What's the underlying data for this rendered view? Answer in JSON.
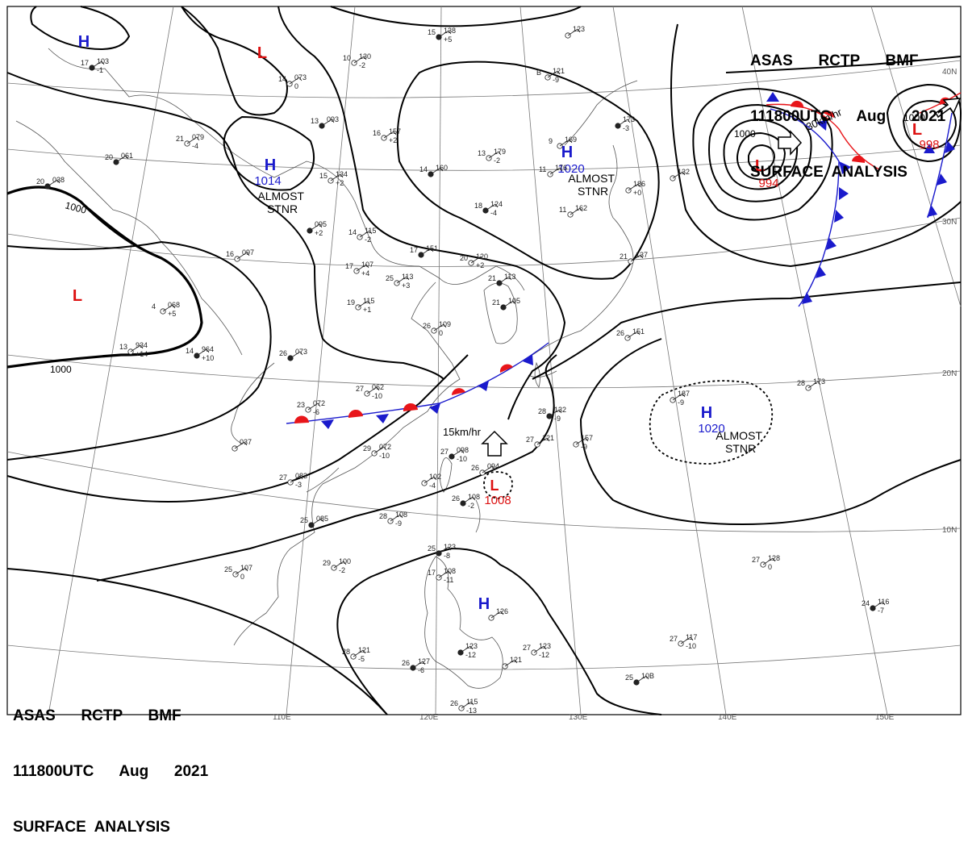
{
  "header_top": {
    "line1": "ASAS      RCTP      BMF",
    "line2": "111800UTC      Aug      2021",
    "line3": "SURFACE  ANALYSIS"
  },
  "header_bottom": {
    "line1": "ASAS      RCTP      BMF",
    "line2": "111800UTC      Aug      2021",
    "line3": "SURFACE  ANALYSIS"
  },
  "colors": {
    "high": "#1a1acc",
    "low": "#dd1111",
    "warm_front": "#e8161a",
    "cold_front": "#1a1acc",
    "isobar": "#000000",
    "coast": "#555555",
    "grid": "#666666"
  },
  "grid_labels": {
    "lon": [
      "110E",
      "120E",
      "130E",
      "140E",
      "150E"
    ],
    "lat": [
      "40N",
      "30N",
      "20N",
      "10N"
    ]
  },
  "centers": [
    {
      "type": "H",
      "pressure": "",
      "note": ""
    },
    {
      "type": "L",
      "pressure": "",
      "note": ""
    },
    {
      "type": "H",
      "pressure": "1014",
      "note": "ALMOST\nSTNR"
    },
    {
      "type": "H",
      "pressure": "1020",
      "note": "ALMOST\nSTNR"
    },
    {
      "type": "L",
      "pressure": "",
      "note": ""
    },
    {
      "type": "L",
      "pressure": "994",
      "note": ""
    },
    {
      "type": "L",
      "pressure": "998",
      "note": ""
    },
    {
      "type": "H",
      "pressure": "1020",
      "note": "ALMOST\nSTNR"
    },
    {
      "type": "L",
      "pressure": "1008",
      "note": ""
    },
    {
      "type": "H",
      "pressure": "",
      "note": ""
    }
  ],
  "isobar_labels": [
    "1000",
    "1000",
    "1000",
    "1000"
  ],
  "motion": [
    {
      "text": "30km/hr"
    },
    {
      "text": "15km/hr"
    }
  ],
  "stations": [
    {
      "a": "15",
      "b": "138",
      "c": "+5"
    },
    {
      "a": "10",
      "b": "130",
      "c": "-2"
    },
    {
      "a": "14",
      "b": "073",
      "c": "0"
    },
    {
      "a": "13",
      "b": "093",
      "c": ""
    },
    {
      "a": "16",
      "b": "157",
      "c": "+2"
    },
    {
      "a": "13",
      "b": "179",
      "c": "-2"
    },
    {
      "a": "14",
      "b": "160",
      "c": ""
    },
    {
      "a": "9",
      "b": "169",
      "c": ""
    },
    {
      "a": "11",
      "b": "176",
      "c": ""
    },
    {
      "a": "",
      "b": "173",
      "c": "-3"
    },
    {
      "a": "",
      "b": "186",
      "c": "+0"
    },
    {
      "a": "",
      "b": "132",
      "c": ""
    },
    {
      "a": "18",
      "b": "124",
      "c": "-4"
    },
    {
      "a": "11",
      "b": "162",
      "c": ""
    },
    {
      "a": "15",
      "b": "134",
      "c": "+2"
    },
    {
      "a": "",
      "b": "095",
      "c": "+2"
    },
    {
      "a": "14",
      "b": "115",
      "c": "-2"
    },
    {
      "a": "17",
      "b": "107",
      "c": "+4"
    },
    {
      "a": "17",
      "b": "151",
      "c": ""
    },
    {
      "a": "20",
      "b": "120",
      "c": "+2"
    },
    {
      "a": "25",
      "b": "113",
      "c": "+3"
    },
    {
      "a": "21",
      "b": "113",
      "c": ""
    },
    {
      "a": "21",
      "b": "137",
      "c": ""
    },
    {
      "a": "19",
      "b": "115",
      "c": "+1"
    },
    {
      "a": "21",
      "b": "105",
      "c": ""
    },
    {
      "a": "26",
      "b": "109",
      "c": "0"
    },
    {
      "a": "26",
      "b": "151",
      "c": ""
    },
    {
      "a": "26",
      "b": "073",
      "c": ""
    },
    {
      "a": "27",
      "b": "062",
      "c": "-10"
    },
    {
      "a": "23",
      "b": "072",
      "c": "-6"
    },
    {
      "a": "20",
      "b": "061",
      "c": ""
    },
    {
      "a": "21",
      "b": "079",
      "c": "-4"
    },
    {
      "a": "16",
      "b": "097",
      "c": ""
    },
    {
      "a": "20",
      "b": "038",
      "c": ""
    },
    {
      "a": "4",
      "b": "068",
      "c": "+5"
    },
    {
      "a": "13",
      "b": "934",
      "c": "+14"
    },
    {
      "a": "14",
      "b": "964",
      "c": "+10"
    },
    {
      "a": "",
      "b": "037",
      "c": ""
    },
    {
      "a": "29",
      "b": "072",
      "c": "-10"
    },
    {
      "a": "27",
      "b": "098",
      "c": "-10"
    },
    {
      "a": "26",
      "b": "094",
      "c": ""
    },
    {
      "a": "",
      "b": "102",
      "c": "-4"
    },
    {
      "a": "26",
      "b": "108",
      "c": "-2"
    },
    {
      "a": "28",
      "b": "108",
      "c": "-9"
    },
    {
      "a": "27",
      "b": "083",
      "c": "-3"
    },
    {
      "a": "25",
      "b": "085",
      "c": ""
    },
    {
      "a": "29",
      "b": "100",
      "c": "-2"
    },
    {
      "a": "25",
      "b": "107",
      "c": "0"
    },
    {
      "a": "25",
      "b": "123",
      "c": "-8"
    },
    {
      "a": "17",
      "b": "108",
      "c": "-11"
    },
    {
      "a": "",
      "b": "126",
      "c": ""
    },
    {
      "a": "",
      "b": "123",
      "c": "-12"
    },
    {
      "a": "27",
      "b": "123",
      "c": "-12"
    },
    {
      "a": "28",
      "b": "121",
      "c": "-5"
    },
    {
      "a": "26",
      "b": "127",
      "c": "-6"
    },
    {
      "a": "",
      "b": "121",
      "c": ""
    },
    {
      "a": "26",
      "b": "115",
      "c": "-13"
    },
    {
      "a": "25",
      "b": "10B",
      "c": ""
    },
    {
      "a": "27",
      "b": "117",
      "c": "-10"
    },
    {
      "a": "27",
      "b": "128",
      "c": "0"
    },
    {
      "a": "24",
      "b": "116",
      "c": "-7"
    },
    {
      "a": "28",
      "b": "173",
      "c": ""
    },
    {
      "a": "",
      "b": "187",
      "c": "-9"
    },
    {
      "a": "28",
      "b": "132",
      "c": "-9"
    },
    {
      "a": "",
      "b": "157",
      "c": "-9"
    },
    {
      "a": "27",
      "b": "121",
      "c": ""
    },
    {
      "a": "17",
      "b": "103",
      "c": "-1"
    },
    {
      "a": "B",
      "b": "121",
      "c": "-9"
    },
    {
      "a": "",
      "b": "123",
      "c": ""
    }
  ]
}
